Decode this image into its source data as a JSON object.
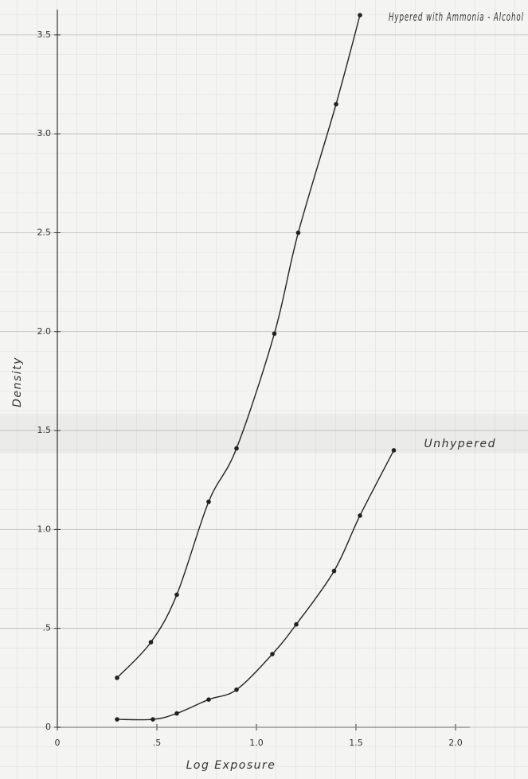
{
  "chart_data": {
    "type": "line",
    "x_label": "Log Exposure",
    "y_label": "Density",
    "xlim": [
      0,
      2.0
    ],
    "ylim": [
      0,
      3.6
    ],
    "xticks": [
      0,
      {
        "value": 0.5,
        "label": ".5"
      },
      {
        "value": 1.0,
        "label": "1.0"
      },
      1.5,
      {
        "value": 2.0,
        "label": "2.0"
      }
    ],
    "yticks": [
      0,
      {
        "value": 0.5,
        "label": ".5"
      },
      {
        "value": 1.0,
        "label": "1.0"
      },
      1.5,
      {
        "value": 2.0,
        "label": "2.0"
      },
      2.5,
      {
        "value": 3.0,
        "label": "3.0"
      },
      3.5
    ],
    "grid": true,
    "series": [
      {
        "name": "Hypered with Ammonia - Alcohol",
        "color": "#222222",
        "x": [
          0.3,
          0.47,
          0.6,
          0.76,
          0.9,
          1.09,
          1.21,
          1.4,
          1.52
        ],
        "values": [
          0.25,
          0.43,
          0.67,
          1.14,
          1.41,
          1.99,
          2.5,
          3.15,
          3.6
        ]
      },
      {
        "name": "Unhypered",
        "color": "#222222",
        "x": [
          0.3,
          0.48,
          0.6,
          0.76,
          0.9,
          1.08,
          1.2,
          1.39,
          1.52,
          1.69
        ],
        "values": [
          0.04,
          0.04,
          0.07,
          0.14,
          0.19,
          0.37,
          0.52,
          0.79,
          1.07,
          1.4
        ]
      }
    ]
  }
}
